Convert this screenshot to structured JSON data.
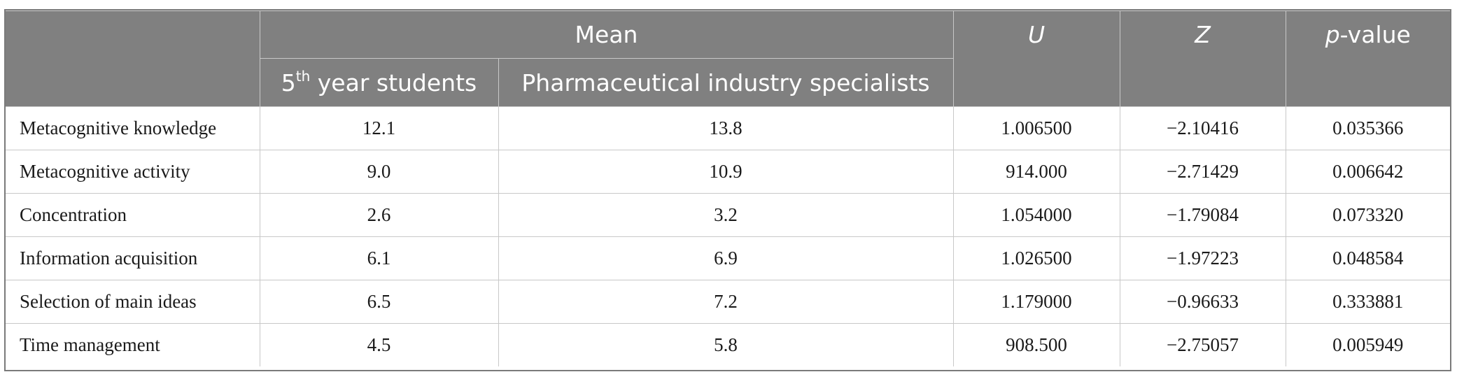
{
  "table": {
    "header": {
      "mean_group": "Mean",
      "col_students_base": "5",
      "col_students_sup": "th",
      "col_students_rest": " year students",
      "col_specialists": "Pharmaceutical industry specialists",
      "col_u": "U",
      "col_z": "Z",
      "col_p_italic": "p",
      "col_p_rest": "-value"
    },
    "rows": [
      {
        "label": "Metacognitive knowledge",
        "students": "12.1",
        "specialists": "13.8",
        "u": "1.006500",
        "z": "−2.10416",
        "p": "0.035366"
      },
      {
        "label": "Metacognitive activity",
        "students": "9.0",
        "specialists": "10.9",
        "u": "914.000",
        "z": "−2.71429",
        "p": "0.006642"
      },
      {
        "label": "Concentration",
        "students": "2.6",
        "specialists": "3.2",
        "u": "1.054000",
        "z": "−1.79084",
        "p": "0.073320"
      },
      {
        "label": "Information acquisition",
        "students": "6.1",
        "specialists": "6.9",
        "u": "1.026500",
        "z": "−1.97223",
        "p": "0.048584"
      },
      {
        "label": "Selection of main ideas",
        "students": "6.5",
        "specialists": "7.2",
        "u": "1.179000",
        "z": "−0.96633",
        "p": "0.333881"
      },
      {
        "label": "Time management",
        "students": "4.5",
        "specialists": "5.8",
        "u": "908.500",
        "z": "−2.75057",
        "p": "0.005949"
      }
    ]
  }
}
